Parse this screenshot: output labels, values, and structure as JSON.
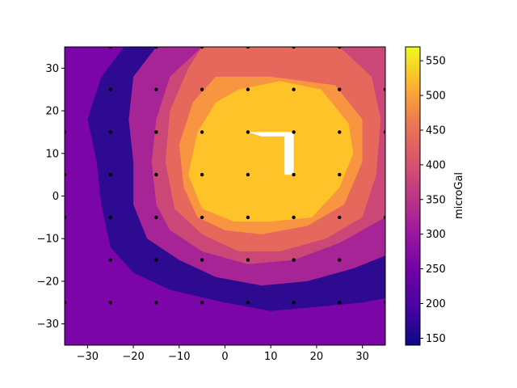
{
  "chart_data": {
    "type": "contour",
    "title": "",
    "xlabel": "",
    "ylabel": "",
    "xlim": [
      -35,
      35
    ],
    "ylim": [
      -35,
      35
    ],
    "x_ticks": [
      -30,
      -20,
      -10,
      0,
      10,
      20,
      30
    ],
    "y_ticks": [
      -30,
      -20,
      -10,
      0,
      10,
      20,
      30
    ],
    "grid": false,
    "colormap": "plasma",
    "colorbar": {
      "label": "microGal",
      "range": [
        140,
        570
      ],
      "ticks": [
        150,
        200,
        250,
        300,
        350,
        400,
        450,
        500,
        550
      ]
    },
    "levels": [
      {
        "min": 140,
        "max": 190,
        "color": "#2d0a8f"
      },
      {
        "min": 190,
        "max": 240,
        "color": "#5402a3"
      },
      {
        "min": 240,
        "max": 290,
        "color": "#7c05a8"
      },
      {
        "min": 290,
        "max": 340,
        "color": "#a72497"
      },
      {
        "min": 340,
        "max": 390,
        "color": "#cb4778"
      },
      {
        "min": 390,
        "max": 440,
        "color": "#e6685d"
      },
      {
        "min": 440,
        "max": 490,
        "color": "#f89540"
      },
      {
        "min": 490,
        "max": 540,
        "color": "#fdc328"
      },
      {
        "min": 540,
        "max": 570,
        "color": "#f0f921"
      }
    ],
    "bands": [
      {
        "level": 1,
        "points": [
          [
            -35,
            35
          ],
          [
            -28,
            35
          ],
          [
            -30,
            28
          ],
          [
            -32,
            18
          ],
          [
            -30,
            8
          ],
          [
            -28,
            -5
          ],
          [
            -25,
            -15
          ],
          [
            -20,
            -22
          ],
          [
            -12,
            -27
          ],
          [
            -5,
            -30
          ],
          [
            5,
            -31
          ],
          [
            15,
            -31
          ],
          [
            25,
            -32
          ],
          [
            35,
            -31
          ],
          [
            35,
            -35
          ],
          [
            -35,
            -35
          ]
        ]
      },
      {
        "level": 2,
        "points": [
          [
            -31,
            35
          ],
          [
            -22,
            35
          ],
          [
            -27,
            28
          ],
          [
            -30,
            18
          ],
          [
            -28,
            8
          ],
          [
            -27,
            -2
          ],
          [
            -25,
            -12
          ],
          [
            -20,
            -18
          ],
          [
            -12,
            -22
          ],
          [
            0,
            -25
          ],
          [
            10,
            -27
          ],
          [
            20,
            -26
          ],
          [
            30,
            -25
          ],
          [
            35,
            -24
          ],
          [
            35,
            -35
          ],
          [
            -35,
            -35
          ],
          [
            -35,
            35
          ]
        ]
      },
      {
        "level": 3,
        "points": [
          [
            -22,
            35
          ],
          [
            -15,
            35
          ],
          [
            -20,
            28
          ],
          [
            -21,
            18
          ],
          [
            -20,
            8
          ],
          [
            -20,
            -2
          ],
          [
            -17,
            -10
          ],
          [
            -10,
            -15
          ],
          [
            -2,
            -19
          ],
          [
            8,
            -21
          ],
          [
            18,
            -20
          ],
          [
            28,
            -17
          ],
          [
            35,
            -14
          ],
          [
            35,
            35
          ]
        ]
      },
      {
        "level": 4,
        "points": [
          [
            -15,
            35
          ],
          [
            -5,
            35
          ],
          [
            -12,
            28
          ],
          [
            -15,
            18
          ],
          [
            -16,
            8
          ],
          [
            -15,
            -2
          ],
          [
            -12,
            -8
          ],
          [
            -5,
            -13
          ],
          [
            5,
            -16
          ],
          [
            15,
            -15
          ],
          [
            25,
            -11
          ],
          [
            35,
            -5
          ],
          [
            35,
            35
          ]
        ]
      },
      {
        "level": 5,
        "points": [
          [
            -5,
            35
          ],
          [
            25,
            35
          ],
          [
            32,
            28
          ],
          [
            34,
            18
          ],
          [
            33,
            5
          ],
          [
            30,
            -5
          ],
          [
            22,
            -10
          ],
          [
            12,
            -13
          ],
          [
            3,
            -13
          ],
          [
            -5,
            -9
          ],
          [
            -11,
            -3
          ],
          [
            -13,
            8
          ],
          [
            -12,
            20
          ],
          [
            -8,
            30
          ]
        ]
      },
      {
        "level": 6,
        "points": [
          [
            -2,
            28
          ],
          [
            10,
            28
          ],
          [
            24,
            26
          ],
          [
            30,
            18
          ],
          [
            30,
            8
          ],
          [
            26,
            -2
          ],
          [
            18,
            -7
          ],
          [
            8,
            -9
          ],
          [
            0,
            -8
          ],
          [
            -6,
            -5
          ],
          [
            -9,
            2
          ],
          [
            -10,
            12
          ],
          [
            -7,
            22
          ]
        ]
      },
      {
        "level": 7,
        "points": [
          [
            3,
            25
          ],
          [
            12,
            27
          ],
          [
            21,
            25
          ],
          [
            27,
            17
          ],
          [
            28,
            10
          ],
          [
            25,
            2
          ],
          [
            19,
            -5
          ],
          [
            10,
            -6
          ],
          [
            2,
            -6
          ],
          [
            -5,
            -3
          ],
          [
            -8,
            5
          ],
          [
            -6,
            15
          ],
          [
            -2,
            22
          ]
        ]
      }
    ],
    "hole": [
      [
        5,
        15
      ],
      [
        15,
        15
      ],
      [
        15,
        5
      ],
      [
        13,
        5
      ],
      [
        13,
        14
      ],
      [
        8,
        14
      ]
    ],
    "data_points": [
      [
        -25,
        25
      ],
      [
        -15,
        25
      ],
      [
        -5,
        25
      ],
      [
        5,
        25
      ],
      [
        15,
        25
      ],
      [
        25,
        25
      ],
      [
        35,
        25
      ],
      [
        -35,
        15
      ],
      [
        -25,
        15
      ],
      [
        -15,
        15
      ],
      [
        -5,
        15
      ],
      [
        5,
        15
      ],
      [
        15,
        15
      ],
      [
        25,
        15
      ],
      [
        35,
        15
      ],
      [
        -35,
        5
      ],
      [
        -25,
        5
      ],
      [
        -15,
        5
      ],
      [
        -5,
        5
      ],
      [
        5,
        5
      ],
      [
        15,
        5
      ],
      [
        25,
        5
      ],
      [
        -35,
        -5
      ],
      [
        -25,
        -5
      ],
      [
        -15,
        -5
      ],
      [
        -5,
        -5
      ],
      [
        5,
        -5
      ],
      [
        15,
        -5
      ],
      [
        25,
        -5
      ],
      [
        35,
        -5
      ],
      [
        -25,
        -15
      ],
      [
        -15,
        -15
      ],
      [
        -5,
        -15
      ],
      [
        5,
        -15
      ],
      [
        15,
        -15
      ],
      [
        25,
        -15
      ],
      [
        -35,
        -25
      ],
      [
        -25,
        -25
      ],
      [
        -15,
        -25
      ],
      [
        -5,
        -25
      ],
      [
        5,
        -25
      ],
      [
        15,
        -25
      ],
      [
        25,
        -25
      ],
      [
        35,
        -25
      ],
      [
        -25,
        35
      ],
      [
        -15,
        35
      ],
      [
        -5,
        35
      ],
      [
        5,
        35
      ],
      [
        15,
        35
      ],
      [
        25,
        35
      ]
    ]
  }
}
